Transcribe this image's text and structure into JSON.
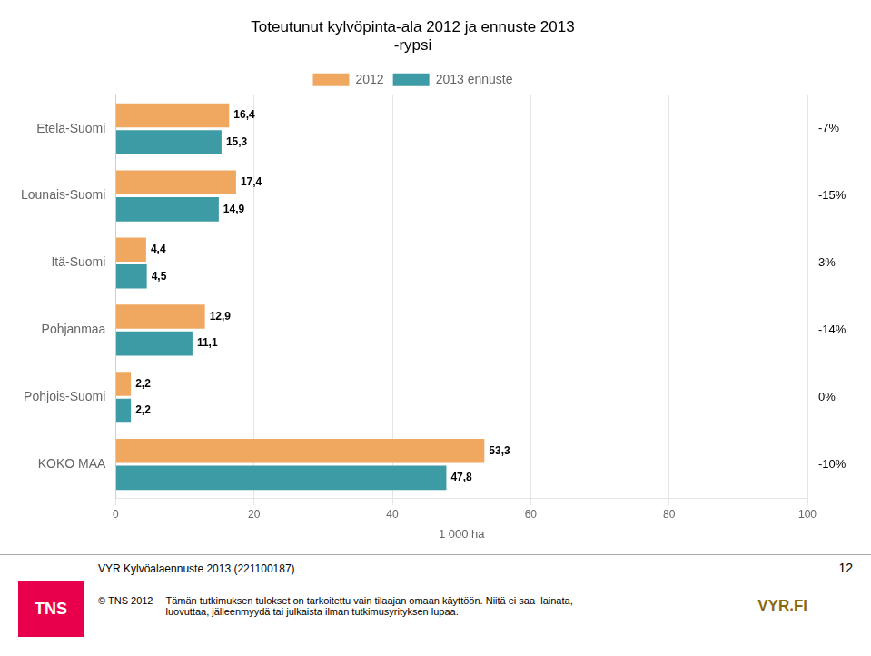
{
  "chart_data": {
    "type": "bar",
    "orientation": "horizontal",
    "title": "Toteutunut kylvöpinta-ala 2012 ja ennuste 2013\n-rypsi",
    "categories": [
      "KOKO MAA",
      "Pohjois-Suomi",
      "Pohjanmaa",
      "Itä-Suomi",
      "Lounais-Suomi",
      "Etelä-Suomi"
    ],
    "series": [
      {
        "name": "2012",
        "color": "#F0A860",
        "values": [
          53.3,
          2.2,
          12.9,
          4.4,
          17.4,
          16.4
        ],
        "value_labels": [
          "53,3",
          "2,2",
          "12,9",
          "4,4",
          "17,4",
          "16,4"
        ]
      },
      {
        "name": "2013 ennuste",
        "color": "#3D9BA5",
        "values": [
          47.8,
          2.2,
          11.1,
          4.5,
          14.9,
          15.3
        ],
        "value_labels": [
          "47,8",
          "2,2",
          "11,1",
          "4,5",
          "14,9",
          "15,3"
        ]
      }
    ],
    "xlabel": "1 000 ha",
    "xlim": [
      0,
      100
    ],
    "xticks": [
      0,
      20,
      40,
      60,
      80,
      100
    ],
    "grid": true,
    "legend": "top",
    "data_labels": true,
    "annotations": [
      "-10%",
      "0%",
      "-14%",
      "3%",
      "-15%",
      "-7%"
    ],
    "footer": {
      "text": "VYR Kylvöalaennuste 2013 (221100187)",
      "notes": [
        "© TNS 2012",
        "Tämän tutkimuksen tulokset on tarkoitettu vain tilaajan omaan käyttöön. Niitä ei saa  lainata,\nluovuttaa, jälleenmyydä tai julkaista ilman tutkimusyrityksen lupaa."
      ],
      "page": "12",
      "logos": [
        {
          "text": "TNS",
          "color": "#E8004D"
        },
        {
          "text": "VYR.FI",
          "color": "#8B6914"
        }
      ]
    }
  }
}
